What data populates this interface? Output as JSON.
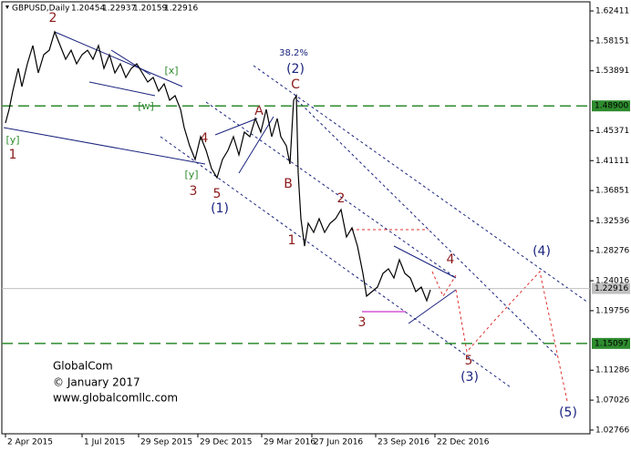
{
  "chart_data": {
    "type": "line",
    "title": "GBPUSD,Daily",
    "ohlc": [
      1.20454,
      1.22937,
      1.20159,
      1.22916
    ],
    "x": [
      2,
      4,
      6,
      9,
      11,
      14,
      17,
      20,
      23,
      26,
      29,
      32,
      35,
      38,
      41,
      44,
      47,
      50,
      53,
      56,
      59,
      62,
      65,
      68,
      71,
      74,
      77,
      80,
      83,
      86,
      89,
      92,
      95,
      98,
      100,
      103,
      106,
      109,
      112,
      115,
      118,
      121,
      124,
      127,
      130,
      133,
      136,
      139,
      142,
      145,
      148,
      151,
      153,
      156,
      158,
      160,
      161.5,
      162.5,
      164,
      166,
      168,
      171,
      174,
      177,
      180,
      183,
      186,
      189,
      192,
      195,
      198,
      200,
      203,
      206,
      209,
      212,
      215,
      218,
      221,
      224,
      227,
      230,
      233,
      235
    ],
    "values": [
      1.4646,
      1.4841,
      1.51,
      1.5424,
      1.5165,
      1.5489,
      1.5748,
      1.5359,
      1.5619,
      1.5683,
      1.5943,
      1.5748,
      1.5554,
      1.5683,
      1.5489,
      1.5619,
      1.5683,
      1.5554,
      1.5748,
      1.5424,
      1.5619,
      1.5359,
      1.5489,
      1.5294,
      1.5424,
      1.5489,
      1.5359,
      1.523,
      1.5294,
      1.51,
      1.5204,
      1.497,
      1.5035,
      1.4841,
      1.4581,
      1.4322,
      1.4127,
      1.4452,
      1.4257,
      1.3998,
      1.3868,
      1.4127,
      1.4257,
      1.4452,
      1.4192,
      1.4516,
      1.4452,
      1.4711,
      1.4516,
      1.4841,
      1.4452,
      1.4711,
      1.4452,
      1.4322,
      1.4063,
      1.497,
      1.5035,
      1.3933,
      1.3284,
      1.2896,
      1.322,
      1.309,
      1.3284,
      1.309,
      1.322,
      1.3284,
      1.3414,
      1.3025,
      1.3155,
      1.2896,
      1.2507,
      1.2182,
      1.2247,
      1.2312,
      1.2507,
      1.2571,
      1.2442,
      1.2701,
      1.2507,
      1.2442,
      1.2247,
      1.2312,
      1.2117,
      1.2273
    ],
    "color": "#000000",
    "xlim": [
      0,
      322.5
    ],
    "ylim": [
      1.0224,
      1.6371
    ],
    "xticks": [
      {
        "value": 2,
        "label": "2 Apr 2015"
      },
      {
        "value": 44,
        "label": "1 Jul 2015"
      },
      {
        "value": 75,
        "label": "29 Sep 2015"
      },
      {
        "value": 107.5,
        "label": "29 Dec 2015"
      },
      {
        "value": 142.5,
        "label": "29 Mar 2016"
      },
      {
        "value": 170,
        "label": "27 Jun 2016"
      },
      {
        "value": 205,
        "label": "23 Sep 2016"
      },
      {
        "value": 237.5,
        "label": "22 Dec 2016"
      }
    ],
    "yticks": [
      1.62411,
      1.58151,
      1.53891,
      1.45371,
      1.41111,
      1.36851,
      1.32536,
      1.28276,
      1.24016,
      1.19756,
      1.11286,
      1.07026,
      1.02766
    ],
    "levels": [
      {
        "value": 1.489,
        "label": "1.48900",
        "color": "#2e8b2e"
      },
      {
        "value": 1.15097,
        "label": "1.15097",
        "color": "#2e8b2e"
      },
      {
        "value": 1.22916,
        "label": "1.22916",
        "color": "#c0c0c0"
      }
    ],
    "annotations": [
      "2",
      "[x]",
      "[w]",
      "[y]",
      "1",
      "4",
      "[y]",
      "3",
      "5",
      "(1)",
      "A",
      "38.2%",
      "(2)",
      "C",
      "B",
      "2",
      "1",
      "3",
      "4",
      "5",
      "(3)",
      "(4)",
      "(5)"
    ],
    "watermark": [
      "GlobalCom",
      "© January 2017",
      "www.globalcomllc.com"
    ]
  }
}
